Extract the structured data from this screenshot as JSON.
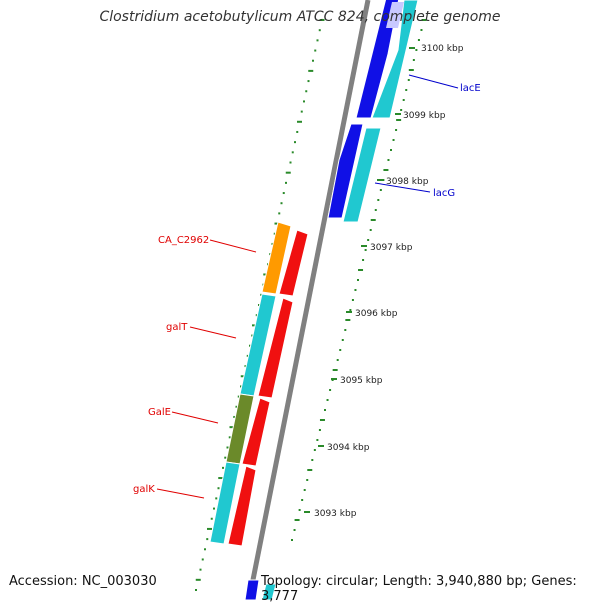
{
  "title": "Clostridium acetobutylicum ATCC 824, complete genome",
  "accession_text": "Accession: NC_003030",
  "stats_text": "Topology: circular; Length: 3,940,880 bp; Genes: 3,777",
  "ruler": {
    "labels": [
      "3100 kbp",
      "3099 kbp",
      "3098 kbp",
      "3097 kbp",
      "3096 kbp",
      "3095 kbp",
      "3094 kbp",
      "3093 kbp"
    ]
  },
  "gene_labels": [
    {
      "name": "lacE",
      "color": "#0000cc"
    },
    {
      "name": "lacG",
      "color": "#0000cc"
    },
    {
      "name": "CA_C2962",
      "color": "#e00000"
    },
    {
      "name": "galT",
      "color": "#e00000"
    },
    {
      "name": "GalE",
      "color": "#e00000"
    },
    {
      "name": "galK",
      "color": "#e00000"
    }
  ],
  "colors": {
    "cds_blue": "#1010e6",
    "cds_cyan": "#20c8d0",
    "cds_red": "#f01010",
    "cds_orange": "#ff9a00",
    "cds_olive": "#6b8a2a",
    "backbone": "#808080",
    "tick_green": "#2a8a2a"
  }
}
